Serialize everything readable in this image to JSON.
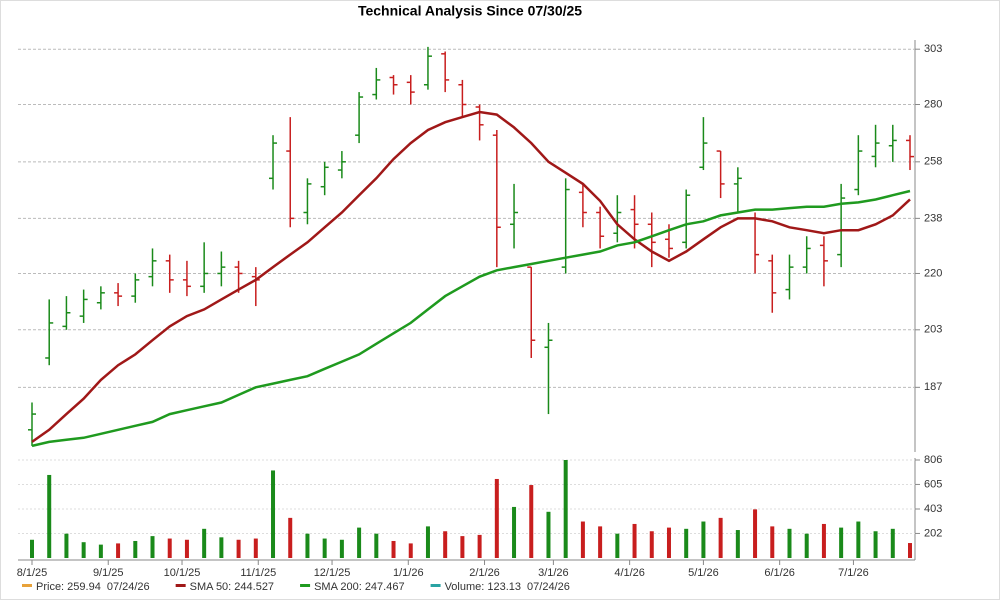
{
  "chart_data": {
    "type": "ohlc",
    "title": "Technical Analysis Since 07/30/25",
    "x": [
      "8/1/25",
      "8/8/25",
      "8/15/25",
      "8/22/25",
      "8/29/25",
      "9/5/25",
      "9/12/25",
      "9/19/25",
      "9/26/25",
      "10/3/25",
      "10/10/25",
      "10/17/25",
      "10/24/25",
      "10/31/25",
      "11/7/25",
      "11/14/25",
      "11/21/25",
      "11/28/25",
      "12/5/25",
      "12/12/25",
      "12/19/25",
      "12/26/25",
      "1/2/26",
      "1/9/26",
      "1/16/26",
      "1/23/26",
      "1/30/26",
      "2/6/26",
      "2/13/26",
      "2/20/26",
      "2/27/26",
      "3/6/26",
      "3/13/26",
      "3/20/26",
      "3/27/26",
      "4/3/26",
      "4/10/26",
      "4/17/26",
      "4/24/26",
      "5/1/26",
      "5/8/26",
      "5/15/26",
      "5/22/26",
      "5/29/26",
      "6/5/26",
      "6/12/26",
      "6/19/26",
      "6/26/26",
      "7/3/26",
      "7/10/26",
      "7/17/26",
      "7/24/26"
    ],
    "open": [
      176,
      195,
      204,
      207,
      211,
      214,
      213,
      219,
      224,
      218,
      216,
      220,
      222,
      219,
      252,
      262,
      240,
      249,
      255,
      268,
      284,
      291,
      289,
      288,
      301,
      288,
      279,
      268,
      236,
      222,
      198,
      222,
      247,
      240,
      233,
      241,
      236,
      231,
      230,
      256,
      262,
      250,
      238,
      224,
      215,
      222,
      229,
      226,
      248,
      260,
      264,
      266
    ],
    "high": [
      183,
      212,
      213,
      215,
      216,
      217,
      220,
      228,
      226,
      224,
      230,
      227,
      224,
      222,
      268,
      275,
      252,
      258,
      262,
      285,
      295,
      292,
      292,
      304,
      302,
      290,
      280,
      270,
      250,
      222,
      205,
      252,
      250,
      242,
      246,
      246,
      240,
      236,
      248,
      275,
      262,
      256,
      240,
      226,
      226,
      232,
      232,
      250,
      268,
      272,
      272,
      268
    ],
    "low": [
      172,
      193,
      203,
      205,
      209,
      210,
      211,
      216,
      214,
      213,
      214,
      216,
      214,
      210,
      248,
      235,
      236,
      246,
      252,
      265,
      282,
      284,
      280,
      286,
      285,
      275,
      266,
      222,
      228,
      195,
      180,
      220,
      235,
      228,
      230,
      228,
      222,
      225,
      228,
      255,
      245,
      240,
      220,
      208,
      212,
      220,
      216,
      222,
      246,
      256,
      258,
      255
    ],
    "close": [
      180,
      205,
      208,
      212,
      214,
      213,
      218,
      224,
      218,
      216,
      220,
      222,
      220,
      218,
      265,
      238,
      250,
      256,
      258,
      283,
      290,
      288,
      285,
      300,
      290,
      280,
      272,
      235,
      240,
      200,
      200,
      248,
      240,
      232,
      240,
      236,
      230,
      228,
      246,
      265,
      250,
      252,
      226,
      214,
      222,
      228,
      224,
      245,
      262,
      265,
      266,
      259.94
    ],
    "up_color": "#1a8a1a",
    "down_color": "#c81e1e",
    "series": [
      {
        "name": "SMA 50",
        "color": "#a01818",
        "values": [
          173,
          176,
          180,
          184,
          189,
          193,
          196,
          200,
          204,
          207,
          209,
          212,
          215,
          218,
          222,
          226,
          230,
          235,
          240,
          246,
          252,
          259,
          265,
          270,
          273,
          275,
          277,
          276,
          271,
          265,
          258,
          254,
          250,
          244,
          236,
          231,
          227,
          224,
          227,
          231,
          235,
          238,
          238,
          237,
          235,
          234,
          233,
          234,
          234,
          236,
          239,
          244.527
        ]
      },
      {
        "name": "SMA 200",
        "color": "#1f9a1f",
        "values": [
          172,
          173,
          173.5,
          174,
          175,
          176,
          177,
          178,
          180,
          181,
          182,
          183,
          185,
          187,
          188,
          189,
          190,
          192,
          194,
          196,
          199,
          202,
          205,
          209,
          213,
          216,
          219,
          221,
          222,
          223,
          224,
          225,
          226,
          227,
          229,
          230,
          232,
          234,
          236,
          237,
          239,
          240,
          241,
          241,
          241.5,
          242,
          242,
          243,
          243.5,
          244.5,
          246,
          247.467
        ]
      }
    ],
    "ylim": [
      171,
      307
    ],
    "yticks": [
      303,
      280,
      258,
      238,
      220,
      203,
      187
    ],
    "log_scale": true,
    "grid": true,
    "volume": {
      "values": [
        150,
        683,
        200,
        130,
        110,
        120,
        140,
        180,
        160,
        150,
        240,
        170,
        150,
        160,
        720,
        330,
        200,
        160,
        150,
        250,
        200,
        140,
        120,
        260,
        220,
        180,
        190,
        650,
        420,
        600,
        380,
        806,
        300,
        260,
        200,
        280,
        220,
        250,
        240,
        300,
        330,
        230,
        400,
        260,
        240,
        200,
        280,
        250,
        300,
        220,
        240,
        123.13
      ],
      "ylim": [
        0,
        806
      ],
      "yticks": [
        806,
        605,
        403,
        202
      ]
    },
    "xticks": [
      "8/1/25",
      "9/1/25",
      "10/1/25",
      "11/1/25",
      "12/1/25",
      "1/1/26",
      "2/1/26",
      "3/1/26",
      "4/1/26",
      "5/1/26",
      "6/1/26",
      "7/1/26"
    ],
    "legend": [
      {
        "label": "Price: 259.94",
        "date": "07/24/26",
        "color": "#e8a23a"
      },
      {
        "label": "SMA 50: 244.527",
        "color": "#a01818"
      },
      {
        "label": "SMA 200: 247.467",
        "color": "#1f9a1f"
      },
      {
        "label": "Volume: 123.13",
        "date": "07/24/26",
        "color": "#2aa3a3"
      }
    ]
  }
}
